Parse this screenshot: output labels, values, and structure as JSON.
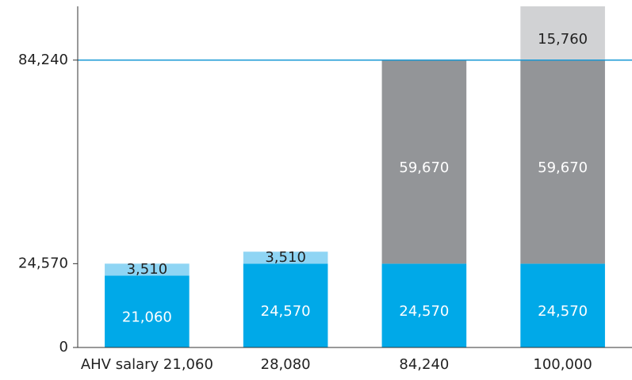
{
  "chart_data": {
    "type": "stacked_bar",
    "categories": [
      "AHV salary 21,060",
      "28,080",
      "84,240",
      "100,000"
    ],
    "series": [
      {
        "color": "#00a9e8",
        "label_color": "#ffffff",
        "values": [
          21060,
          24570,
          24570,
          24570
        ],
        "value_labels": [
          "21,060",
          "24,570",
          "24,570",
          "24,570"
        ]
      },
      {
        "color": "#8fd5f4",
        "label_color": "#222222",
        "values": [
          3510,
          3510,
          null,
          null
        ],
        "value_labels": [
          "3,510",
          "3,510",
          null,
          null
        ]
      },
      {
        "color": "#939598",
        "label_color": "#ffffff",
        "values": [
          null,
          null,
          59670,
          59670
        ],
        "value_labels": [
          null,
          null,
          "59,670",
          "59,670"
        ]
      },
      {
        "color": "#d1d2d4",
        "label_color": "#222222",
        "values": [
          null,
          null,
          null,
          15760
        ],
        "value_labels": [
          null,
          null,
          null,
          "15,760"
        ]
      }
    ],
    "ylim": [
      0,
      100000
    ],
    "yticks": [
      0,
      {
        "value": 24570,
        "label": "24,570"
      },
      {
        "value": 84240,
        "label": "84,240"
      }
    ],
    "reference_line": {
      "value": 84240,
      "color": "#1a9ad6"
    },
    "grid": false
  }
}
